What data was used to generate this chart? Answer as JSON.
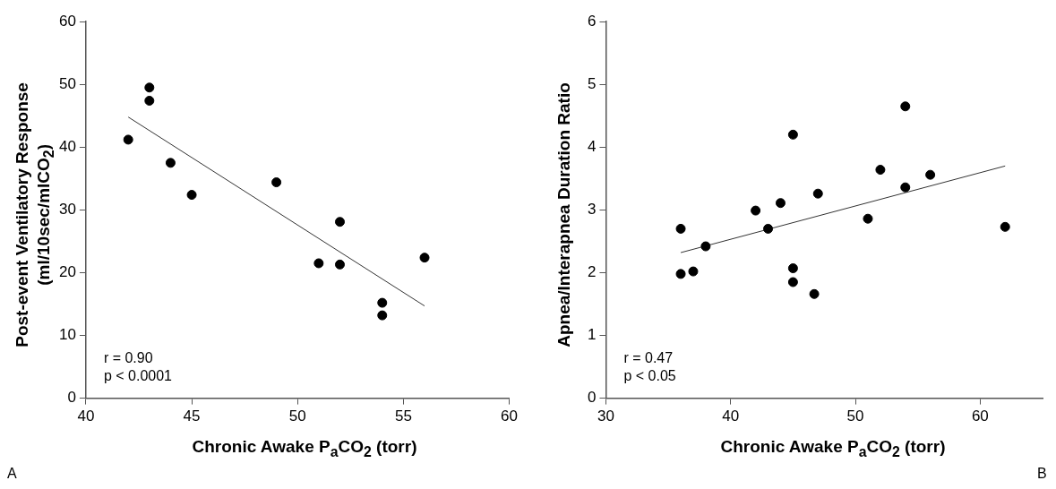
{
  "chart_data": [
    {
      "type": "scatter",
      "xlabel": "Chronic Awake P$_{a}$CO$_{2}$ (torr)",
      "ylabel": "Post-event Ventilatory Response (ml/10sec/mlCO$_{2}$)",
      "xlim": [
        40,
        60
      ],
      "xticks": [
        40,
        45,
        50,
        55,
        60
      ],
      "ylim": [
        0,
        60
      ],
      "yticks": [
        0,
        10,
        20,
        30,
        40,
        50,
        60
      ],
      "grid": false,
      "legend": false,
      "series": [
        {
          "type": "scatter",
          "marker": "circle",
          "color": "#000000",
          "x": [
            42,
            43,
            43,
            44,
            45,
            49,
            51,
            52,
            52,
            54,
            54,
            56
          ],
          "values": [
            41.2,
            49.5,
            47.4,
            37.5,
            32.4,
            34.4,
            21.5,
            28.1,
            21.3,
            15.2,
            13.2,
            22.4
          ]
        },
        {
          "type": "line",
          "marker": "none",
          "color": "#333333",
          "x": [
            42,
            56
          ],
          "values": [
            44.8,
            14.7
          ]
        }
      ],
      "annotations": [
        "r = 0.90",
        "p < 0.0001",
        "A"
      ]
    },
    {
      "type": "scatter",
      "xlabel": "Chronic Awake P$_{a}$CO$_{2}$ (torr)",
      "ylabel": "Apnea/Interapnea Duration Ratio",
      "xlim": [
        30,
        65
      ],
      "xticks": [
        30,
        40,
        50,
        60
      ],
      "ylim": [
        0,
        6
      ],
      "yticks": [
        0,
        1,
        2,
        3,
        4,
        5,
        6
      ],
      "grid": false,
      "legend": false,
      "series": [
        {
          "type": "scatter",
          "marker": "circle",
          "color": "#000000",
          "x": [
            36,
            36,
            37,
            38,
            42,
            43,
            44,
            45,
            45,
            45,
            46.7,
            47,
            51,
            52,
            54,
            54,
            56,
            62
          ],
          "values": [
            2.7,
            1.98,
            2.02,
            2.42,
            2.99,
            2.7,
            3.11,
            4.2,
            2.07,
            1.85,
            1.66,
            3.26,
            2.86,
            3.64,
            4.65,
            3.36,
            3.56,
            2.73
          ]
        },
        {
          "type": "line",
          "marker": "none",
          "color": "#333333",
          "x": [
            36,
            62
          ],
          "values": [
            2.32,
            3.7
          ]
        }
      ],
      "annotations": [
        "r = 0.47",
        "p < 0.05",
        "B"
      ]
    }
  ]
}
